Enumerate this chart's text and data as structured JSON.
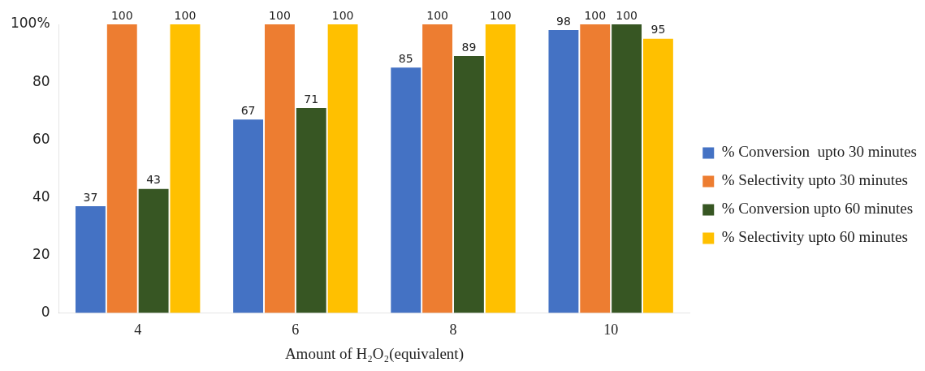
{
  "chart_data": {
    "type": "bar",
    "xlabel": "Amount of H₂O₂(equivalent)",
    "categories": [
      "4",
      "6",
      "8",
      "10"
    ],
    "series": [
      {
        "name": "% Conversion  upto 30 minutes",
        "color": "#4472c4",
        "values": [
          37,
          67,
          85,
          98
        ]
      },
      {
        "name": "% Selectivity upto 30 minutes",
        "color": "#ed7d31",
        "values": [
          100,
          100,
          100,
          100
        ]
      },
      {
        "name": "% Conversion upto 60 minutes",
        "color": "#375623",
        "values": [
          43,
          71,
          89,
          100
        ]
      },
      {
        "name": "% Selectivity upto 60 minutes",
        "color": "#ffc000",
        "values": [
          100,
          100,
          100,
          95
        ]
      }
    ],
    "ylim": [
      0,
      100
    ],
    "yticks": [
      0,
      20,
      40,
      60,
      80,
      {
        "value": 100,
        "label": "100%"
      }
    ],
    "grid": false,
    "legend": "right",
    "data_labels": true
  }
}
